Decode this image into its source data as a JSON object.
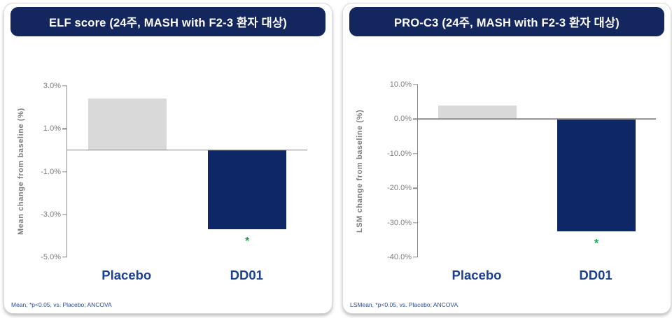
{
  "chart_data": [
    {
      "type": "bar",
      "title": "ELF score (24주, MASH with F2-3 환자 대상)",
      "ylabel": "Mean change from baseline (%)",
      "categories": [
        "Placebo",
        "DD01"
      ],
      "values": [
        2.4,
        -3.7
      ],
      "ylim": [
        -5,
        3
      ],
      "yticks": [
        3,
        1,
        -1,
        -3,
        -5
      ],
      "ytick_labels": [
        "3.0%",
        "1.0%",
        "-1.0%",
        "-3.0%",
        "-5.0%"
      ],
      "bar_colors": [
        "#d9d9d9",
        "#0e2766"
      ],
      "significance_markers": [
        null,
        "*"
      ],
      "footnote": "Mean, *p<0.05, vs. Placebo; ANCOVA",
      "grid": false,
      "legend": "none"
    },
    {
      "type": "bar",
      "title": "PRO-C3 (24주, MASH with F2-3 환자 대상)",
      "ylabel": "LSM change from baseline (%)",
      "categories": [
        "Placebo",
        "DD01"
      ],
      "values": [
        3.9,
        -32.5
      ],
      "ylim": [
        -40,
        10
      ],
      "yticks": [
        10,
        0,
        -10,
        -20,
        -30,
        -40
      ],
      "ytick_labels": [
        "10.0%",
        "0.0%",
        "-10.0%",
        "-20.0%",
        "-30.0%",
        "-40.0%"
      ],
      "bar_colors": [
        "#d9d9d9",
        "#0e2766"
      ],
      "significance_markers": [
        null,
        "*"
      ],
      "footnote": "LSMean, *p<0.05, vs. Placebo; ANCOVA",
      "grid": false,
      "legend": "none"
    }
  ],
  "colors": {
    "header_bg": "#14265e",
    "header_text": "#ffffff",
    "bar_placebo": "#d9d9d9",
    "bar_dd01": "#0e2766",
    "axis_line": "#8c8c8c",
    "tick_text": "#7d7d7d",
    "category_label": "#1c4190",
    "footnote_text": "#2a4a9a",
    "significance_marker": "#17a54b"
  }
}
